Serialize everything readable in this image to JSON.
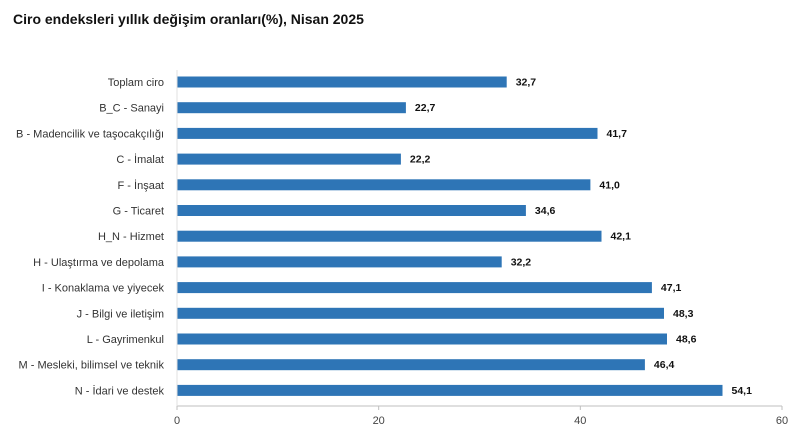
{
  "chart_data": {
    "type": "bar",
    "orientation": "horizontal",
    "title": "Ciro endeksleri yıllık değişim oranları(%), Nisan 2025",
    "categories": [
      "Toplam ciro",
      "B_C - Sanayi",
      "B - Madencilik ve taşocakçılığı",
      "C - İmalat",
      "F - İnşaat",
      "G - Ticaret",
      "H_N - Hizmet",
      "H - Ulaştırma ve depolama",
      "I - Konaklama ve yiyecek",
      "J - Bilgi ve iletişim",
      "L - Gayrimenkul",
      "M - Mesleki, bilimsel ve teknik",
      "N - İdari ve destek"
    ],
    "values": [
      32.7,
      22.7,
      41.7,
      22.2,
      41.0,
      34.6,
      42.1,
      32.2,
      47.1,
      48.3,
      48.6,
      46.4,
      54.1
    ],
    "value_labels": [
      "32,7",
      "22,7",
      "41,7",
      "22,2",
      "41,0",
      "34,6",
      "42,1",
      "32,2",
      "47,1",
      "48,3",
      "48,6",
      "46,4",
      "54,1"
    ],
    "xlim": [
      0,
      60
    ],
    "xticks": [
      0,
      20,
      40,
      60
    ],
    "xtick_labels": [
      "0",
      "20",
      "40",
      "60"
    ],
    "grid": false,
    "bar_color": "#2e75b6"
  }
}
